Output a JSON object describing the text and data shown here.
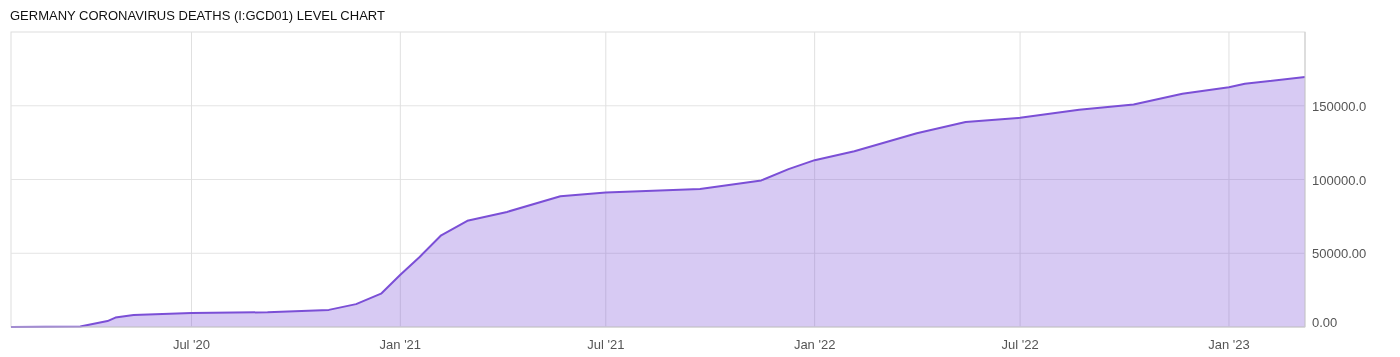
{
  "chart_data": {
    "type": "area",
    "title": "GERMANY CORONAVIRUS DEATHS (I:GCD01) LEVEL CHART",
    "x": [
      "2020-01-24",
      "2020-03-25",
      "2020-04-18",
      "2020-04-25",
      "2020-05-11",
      "2020-07-01",
      "2020-09-06",
      "2020-10-30",
      "2020-11-23",
      "2020-12-15",
      "2021-01-01",
      "2021-01-18",
      "2021-02-06",
      "2021-03-01",
      "2021-04-05",
      "2021-05-22",
      "2021-07-01",
      "2021-09-22",
      "2021-11-15",
      "2021-12-09",
      "2022-01-01",
      "2022-02-05",
      "2022-04-01",
      "2022-05-14",
      "2022-07-01",
      "2022-08-22",
      "2022-10-09",
      "2022-11-21",
      "2023-01-01",
      "2023-01-15",
      "2023-03-09"
    ],
    "series": [
      {
        "color": "#7b4fd6",
        "values": [
          0,
          300,
          4000,
          6400,
          8200,
          9450,
          10000,
          11600,
          15500,
          22600,
          35400,
          47500,
          62200,
          72000,
          78000,
          88700,
          91200,
          93600,
          99400,
          107000,
          113100,
          119200,
          131400,
          139000,
          141800,
          147300,
          150900,
          158200,
          162500,
          164900,
          169500
        ]
      }
    ],
    "xlim": [
      "2020-01-24",
      "2023-03-09"
    ],
    "xticks": [
      {
        "value": "2020-07-01",
        "label": "Jul '20"
      },
      {
        "value": "2021-01-01",
        "label": "Jan '21"
      },
      {
        "value": "2021-07-01",
        "label": "Jul '21"
      },
      {
        "value": "2022-01-01",
        "label": "Jan '22"
      },
      {
        "value": "2022-07-01",
        "label": "Jul '22"
      },
      {
        "value": "2023-01-01",
        "label": "Jan '23"
      }
    ],
    "ylim": [
      0,
      200000
    ],
    "yticks": [
      {
        "value": 0,
        "label": "0.00"
      },
      {
        "value": 50000,
        "label": "50000.00"
      },
      {
        "value": 100000,
        "label": "100000.0"
      },
      {
        "value": 150000,
        "label": "150000.0"
      }
    ],
    "grid": true
  }
}
